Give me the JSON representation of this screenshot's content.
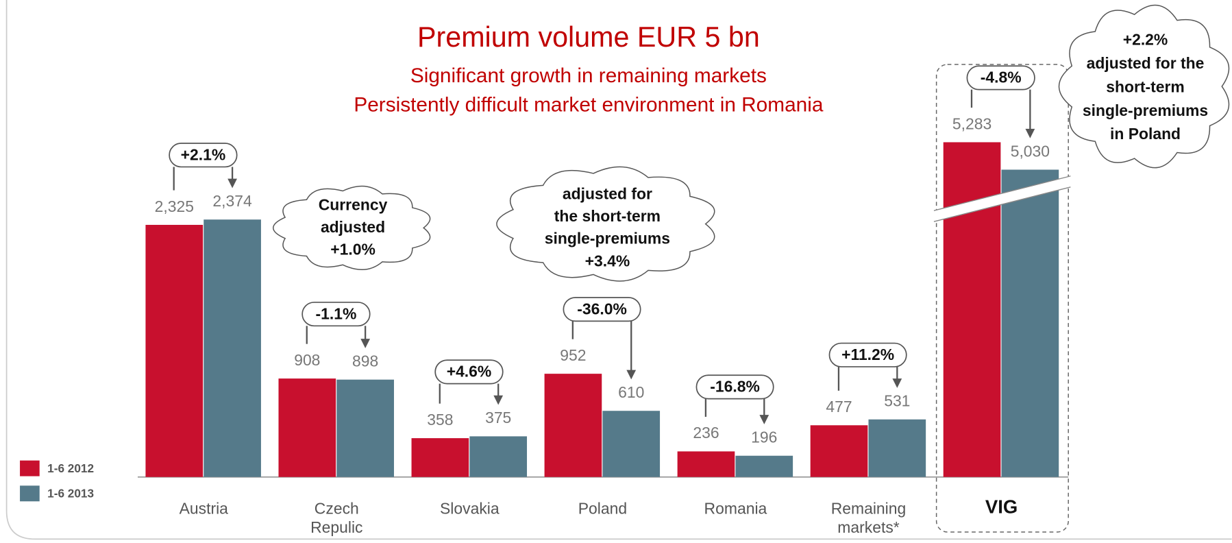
{
  "chart_data": {
    "type": "bar",
    "title": "Premium volume EUR 5 bn",
    "subtitle": [
      "Significant growth in remaining markets",
      "Persistently difficult market environment in Romania"
    ],
    "categories": [
      "Austria",
      "Czech Repulic",
      "Slovakia",
      "Poland",
      "Romania",
      "Remaining markets*",
      "VIG"
    ],
    "series": [
      {
        "name": "1-6 2012",
        "color": "#c8102e",
        "values": [
          2325,
          908,
          358,
          952,
          236,
          477,
          5283
        ],
        "value_labels": [
          "2,325",
          "908",
          "358",
          "952",
          "236",
          "477",
          "5,283"
        ]
      },
      {
        "name": "1-6 2013",
        "color": "#557a8a",
        "values": [
          2374,
          898,
          375,
          610,
          196,
          531,
          5030
        ],
        "value_labels": [
          "2,374",
          "898",
          "375",
          "610",
          "196",
          "531",
          "5,030"
        ]
      }
    ],
    "changes": [
      "+2.1%",
      "-1.1%",
      "+4.6%",
      "-36.0%",
      "-16.8%",
      "+11.2%",
      "-4.8%"
    ],
    "notes": [
      {
        "lines": [
          "Currency",
          "adjusted",
          "+1.0%"
        ]
      },
      {
        "lines": [
          "adjusted for",
          "the short-term",
          "single-premiums",
          "+3.4%"
        ]
      },
      {
        "lines": [
          "+2.2%",
          "adjusted for the",
          "short-term",
          "single-premiums",
          "in Poland"
        ]
      }
    ],
    "ylim": [
      0,
      2500
    ]
  }
}
